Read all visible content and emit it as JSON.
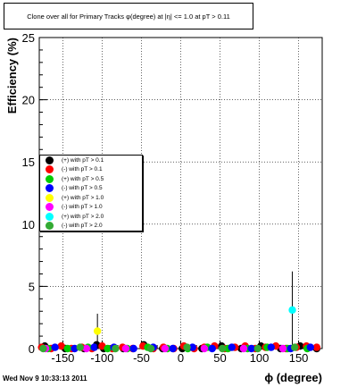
{
  "title": "Clone  over all for Primary Tracks φ(degree) at |η| <= 1.0 at pT > 0.11",
  "timestamp": "Wed Nov  9 10:33:13 2011",
  "chart_data": {
    "type": "scatter",
    "title": "Clone  over all for Primary Tracks φ(degree) at |η| <= 1.0 at pT > 0.11",
    "xlabel": "ϕ (degree)",
    "ylabel": "Efficiency (%)",
    "xlim": [
      -180,
      180
    ],
    "ylim": [
      0,
      25
    ],
    "x_ticks": [
      -150,
      -100,
      -50,
      0,
      50,
      100,
      150
    ],
    "x_tick_labels": [
      "-150",
      "-100",
      "-50",
      "0",
      "50",
      "100",
      "150"
    ],
    "y_ticks": [
      0,
      5,
      10,
      15,
      20,
      25
    ],
    "y_tick_labels": [
      "0",
      "5",
      "10",
      "15",
      "20",
      "25"
    ],
    "grid": true,
    "legend_position": "center-left",
    "series": [
      {
        "name": "(+) with pT > 0.1",
        "color": "#000000",
        "x": [
          -173,
          -147,
          -123,
          -107,
          -98,
          -73,
          -47,
          -23,
          2,
          27,
          52,
          77,
          102,
          127,
          152,
          173
        ],
        "y": [
          0.2,
          0,
          0,
          0.3,
          0,
          0,
          0.3,
          0,
          0,
          0,
          0.2,
          0,
          0.2,
          0,
          0.2,
          0
        ]
      },
      {
        "name": "(-) with pT > 0.1",
        "color": "#ff0000",
        "x": [
          -177,
          -165,
          -152,
          -139,
          -126,
          -113,
          -100,
          -87,
          -74,
          -61,
          -48,
          -35,
          -22,
          -9,
          4,
          17,
          30,
          43,
          56,
          69,
          82,
          95,
          108,
          121,
          134,
          147,
          160,
          173
        ],
        "y": [
          0.1,
          0,
          0.2,
          0,
          0.1,
          0,
          0.2,
          0,
          0.1,
          0,
          0.2,
          0,
          0.1,
          0,
          0.2,
          0,
          0.1,
          0.2,
          0,
          0.1,
          0.2,
          0,
          0.1,
          0.2,
          0,
          0.1,
          0.2,
          0.1
        ]
      },
      {
        "name": "(+) with pT > 0.5",
        "color": "#00cc00",
        "x": [
          -169,
          -144,
          -118,
          -93,
          -68,
          -42,
          -17,
          9,
          34,
          60,
          85,
          110,
          136,
          161
        ],
        "y": [
          0,
          0,
          0.1,
          0,
          0,
          0.1,
          0,
          0,
          0.1,
          0,
          0,
          0.1,
          0,
          0
        ]
      },
      {
        "name": "(-) with pT > 0.5",
        "color": "#0000ff",
        "x": [
          -160,
          -135,
          -110,
          -85,
          -60,
          -35,
          -10,
          15,
          40,
          65,
          90,
          115,
          140,
          165
        ],
        "y": [
          0.1,
          0,
          0.1,
          0.1,
          0,
          0.1,
          0,
          0.1,
          0,
          0.1,
          0,
          0.1,
          0,
          0.1
        ]
      },
      {
        "name": "(+) with pT > 1.0",
        "color": "#ffff00",
        "x": [
          -106
        ],
        "y": [
          1.4
        ],
        "yerr": [
          1.4
        ]
      },
      {
        "name": "(-) with pT > 1.0",
        "color": "#ff00ff",
        "x": [
          -172,
          -120,
          -70,
          -20,
          30,
          80,
          130
        ],
        "y": [
          0,
          0,
          0,
          0,
          0,
          0,
          0
        ]
      },
      {
        "name": "(+) with pT > 2.0",
        "color": "#00ffff",
        "x": [
          142
        ],
        "y": [
          3.1
        ],
        "yerr": [
          3.1
        ]
      },
      {
        "name": "(-) with pT > 2.0",
        "color": "#33aa33",
        "x": [
          -175,
          -128,
          -83,
          -38,
          8,
          53,
          98,
          145
        ],
        "y": [
          0,
          0.1,
          0,
          0,
          0.1,
          0,
          0,
          0.1
        ]
      }
    ]
  }
}
